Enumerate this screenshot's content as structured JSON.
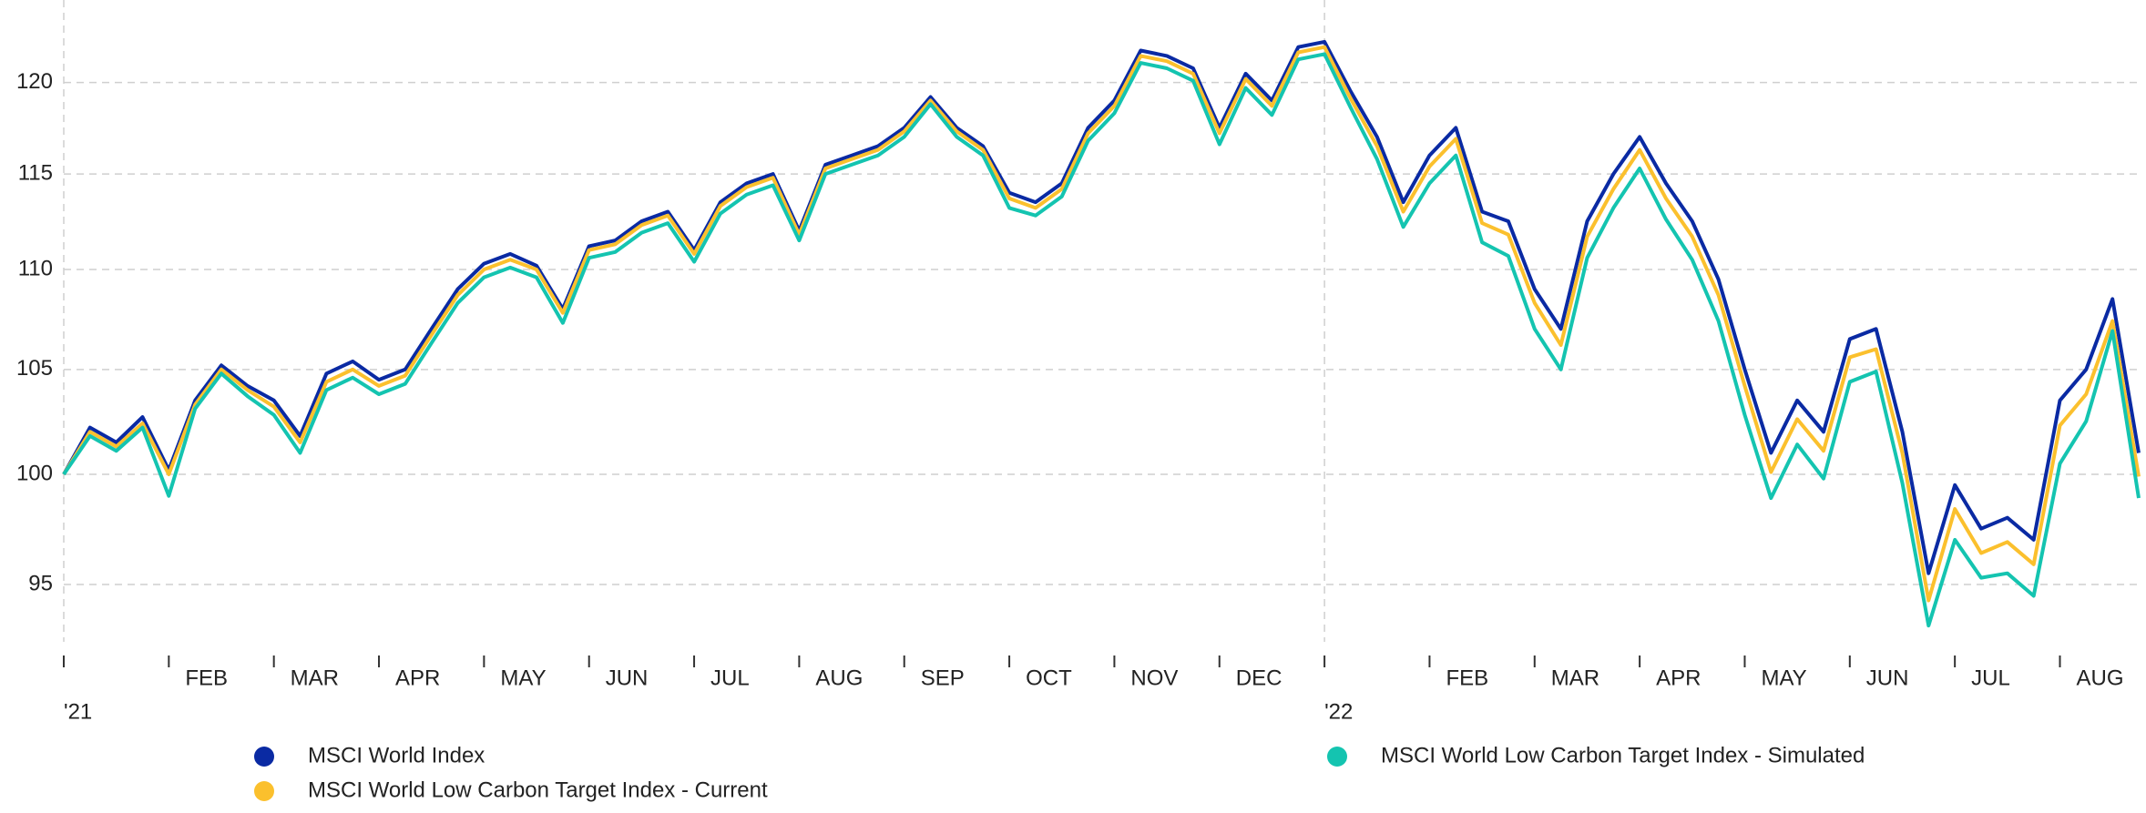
{
  "chart_data": {
    "type": "line",
    "categories": [
      "'21",
      null,
      null,
      null,
      "FEB",
      null,
      null,
      null,
      "MAR",
      null,
      null,
      null,
      "APR",
      null,
      null,
      null,
      "MAY",
      null,
      null,
      null,
      "JUN",
      null,
      null,
      null,
      "JUL",
      null,
      null,
      null,
      "AUG",
      null,
      null,
      null,
      "SEP",
      null,
      null,
      null,
      "OCT",
      null,
      null,
      null,
      "NOV",
      null,
      null,
      null,
      "DEC",
      null,
      null,
      null,
      "'22",
      null,
      null,
      null,
      "FEB",
      null,
      null,
      null,
      "MAR",
      null,
      null,
      null,
      "APR",
      null,
      null,
      null,
      "MAY",
      null,
      null,
      null,
      "JUN",
      null,
      null,
      null,
      "JUL",
      null,
      null,
      null,
      "AUG",
      null,
      null,
      null
    ],
    "series": [
      {
        "name": "MSCI World Index",
        "color": "#0a2aa3",
        "values": [
          100,
          102.2,
          101.5,
          102.7,
          100.2,
          103.5,
          105.2,
          104.2,
          103.5,
          101.8,
          104.8,
          105.4,
          104.5,
          105.0,
          107.0,
          109.0,
          110.3,
          110.8,
          110.2,
          108.0,
          111.2,
          111.5,
          112.5,
          113.0,
          111.0,
          113.5,
          114.5,
          115.0,
          112.0,
          115.5,
          116.0,
          116.5,
          117.5,
          119.2,
          117.5,
          116.5,
          114.0,
          113.5,
          114.5,
          117.5,
          119.0,
          121.8,
          121.5,
          120.8,
          117.5,
          120.5,
          119.0,
          122.0,
          122.3,
          119.5,
          117.0,
          113.5,
          116.0,
          117.5,
          113.0,
          112.5,
          109.0,
          107.0,
          112.5,
          115.0,
          117.0,
          114.5,
          112.5,
          109.5,
          105.0,
          101.0,
          103.5,
          102.0,
          106.5,
          107.0,
          102.0,
          95.5,
          99.5,
          97.5,
          98.0,
          97.0,
          103.5,
          105.0,
          108.5,
          101.0
        ]
      },
      {
        "name": "MSCI World Low Carbon Target Index - Current",
        "color": "#fbc02d",
        "values": [
          100,
          102.0,
          101.3,
          102.4,
          100.0,
          103.3,
          105.0,
          104.0,
          103.2,
          101.5,
          104.4,
          105.0,
          104.2,
          104.7,
          106.7,
          108.7,
          110.0,
          110.5,
          110.0,
          107.8,
          111.0,
          111.3,
          112.3,
          112.8,
          110.8,
          113.3,
          114.3,
          114.8,
          111.8,
          115.3,
          115.8,
          116.3,
          117.3,
          119.0,
          117.3,
          116.3,
          113.7,
          113.2,
          114.2,
          117.2,
          118.7,
          121.5,
          121.2,
          120.5,
          117.2,
          120.2,
          118.7,
          121.7,
          122.0,
          119.1,
          116.5,
          113.0,
          115.4,
          116.9,
          112.4,
          111.8,
          108.3,
          106.2,
          111.7,
          114.2,
          116.3,
          113.7,
          111.7,
          108.7,
          104.2,
          100.1,
          102.6,
          101.1,
          105.6,
          106.0,
          101.0,
          94.3,
          98.4,
          96.4,
          96.9,
          95.9,
          102.3,
          103.8,
          107.4,
          99.9
        ]
      },
      {
        "name": "MSCI World Low Carbon Target Index - Simulated",
        "color": "#14c4b0",
        "values": [
          100,
          101.8,
          101.1,
          102.2,
          99.0,
          103.1,
          104.8,
          103.7,
          102.8,
          101.0,
          104.0,
          104.6,
          103.8,
          104.3,
          106.3,
          108.3,
          109.6,
          110.1,
          109.6,
          107.3,
          110.6,
          110.9,
          111.9,
          112.4,
          110.4,
          112.9,
          113.9,
          114.4,
          111.5,
          115.0,
          115.5,
          116.0,
          117.0,
          118.8,
          117.0,
          116.0,
          113.2,
          112.8,
          113.8,
          116.8,
          118.3,
          121.1,
          120.8,
          120.1,
          116.6,
          119.7,
          118.2,
          121.3,
          121.6,
          118.6,
          115.8,
          112.2,
          114.5,
          116.0,
          111.4,
          110.7,
          107.0,
          105.0,
          110.6,
          113.2,
          115.3,
          112.6,
          110.5,
          107.4,
          102.8,
          98.9,
          101.4,
          99.8,
          104.4,
          104.9,
          99.6,
          93.2,
          97.0,
          95.3,
          95.5,
          94.5,
          100.5,
          102.5,
          106.9,
          98.9
        ]
      }
    ],
    "ylim": [
      92.5,
      124.7
    ],
    "yticks": [
      95,
      100,
      105,
      110,
      115,
      120
    ],
    "log_y": true,
    "grid": true,
    "legend": "bottom"
  }
}
